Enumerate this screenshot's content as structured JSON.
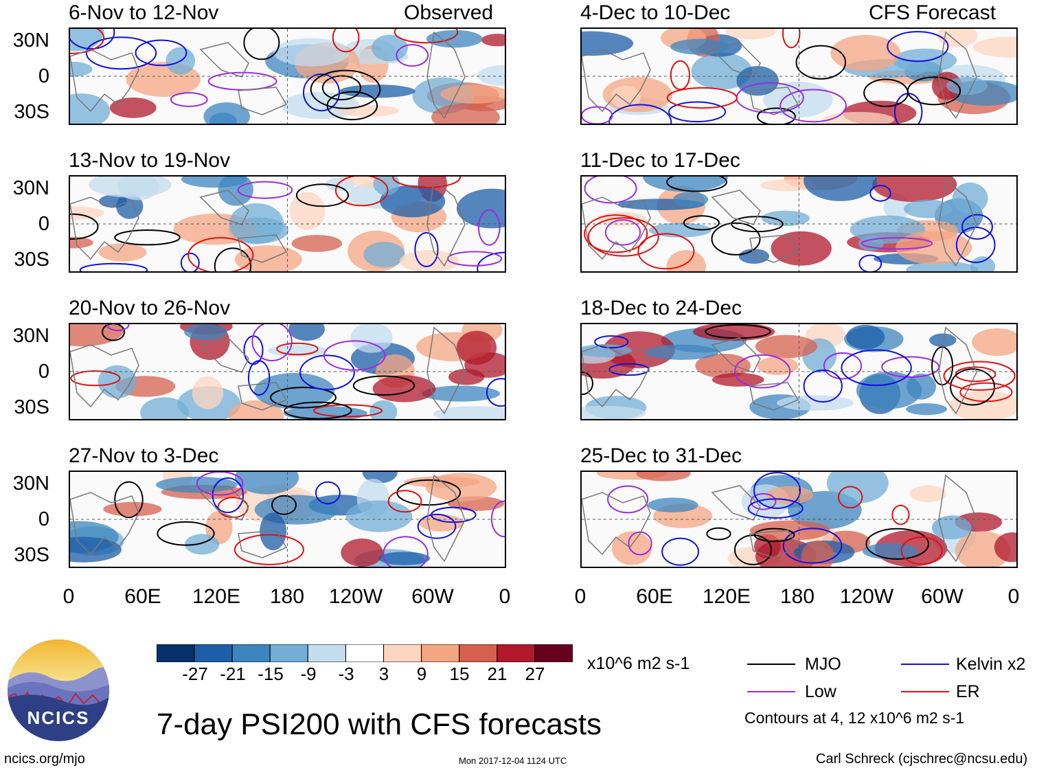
{
  "header": {
    "left_tag": "Observed",
    "right_tag": "CFS Forecast"
  },
  "panels_observed": [
    {
      "title": "6-Nov to 12-Nov"
    },
    {
      "title": "13-Nov to 19-Nov"
    },
    {
      "title": "20-Nov to 26-Nov"
    },
    {
      "title": "27-Nov to 3-Dec"
    }
  ],
  "panels_forecast": [
    {
      "title": "4-Dec to 10-Dec"
    },
    {
      "title": "11-Dec to 17-Dec"
    },
    {
      "title": "18-Dec to 24-Dec"
    },
    {
      "title": "25-Dec to 31-Dec"
    }
  ],
  "axes": {
    "lat_labels": [
      "30N",
      "0",
      "30S"
    ],
    "lon_labels": [
      "0",
      "60E",
      "120E",
      "180",
      "120W",
      "60W",
      "0"
    ]
  },
  "colorbar": {
    "ticks": [
      "-27",
      "-21",
      "-15",
      "-9",
      "-3",
      "3",
      "9",
      "15",
      "21",
      "27"
    ],
    "units": "x10^6 m2 s-1",
    "colors": [
      "#08306b",
      "#1c5ea8",
      "#3d85bf",
      "#72aed6",
      "#c3dcee",
      "#ffffff",
      "#fdd5c0",
      "#f4a582",
      "#d6604d",
      "#b2182b",
      "#67001f"
    ]
  },
  "legend": {
    "mjo": "MJO",
    "kelvin": "Kelvin x2",
    "low": "Low",
    "er": "ER",
    "contours": "Contours at 4, 12 x10^6 m2 s-1",
    "colors": {
      "mjo": "#000000",
      "kelvin": "#1010e0",
      "low": "#9a2be2",
      "er": "#e01010"
    }
  },
  "footer": {
    "title": "7-day PSI200 with CFS forecasts",
    "url": "ncics.org/mjo",
    "timestamp": "Mon 2017-12-04 1124 UTC",
    "credit": "Carl Schreck (cjschrec@ncsu.edu)"
  },
  "logo": {
    "text": "NCICS"
  }
}
